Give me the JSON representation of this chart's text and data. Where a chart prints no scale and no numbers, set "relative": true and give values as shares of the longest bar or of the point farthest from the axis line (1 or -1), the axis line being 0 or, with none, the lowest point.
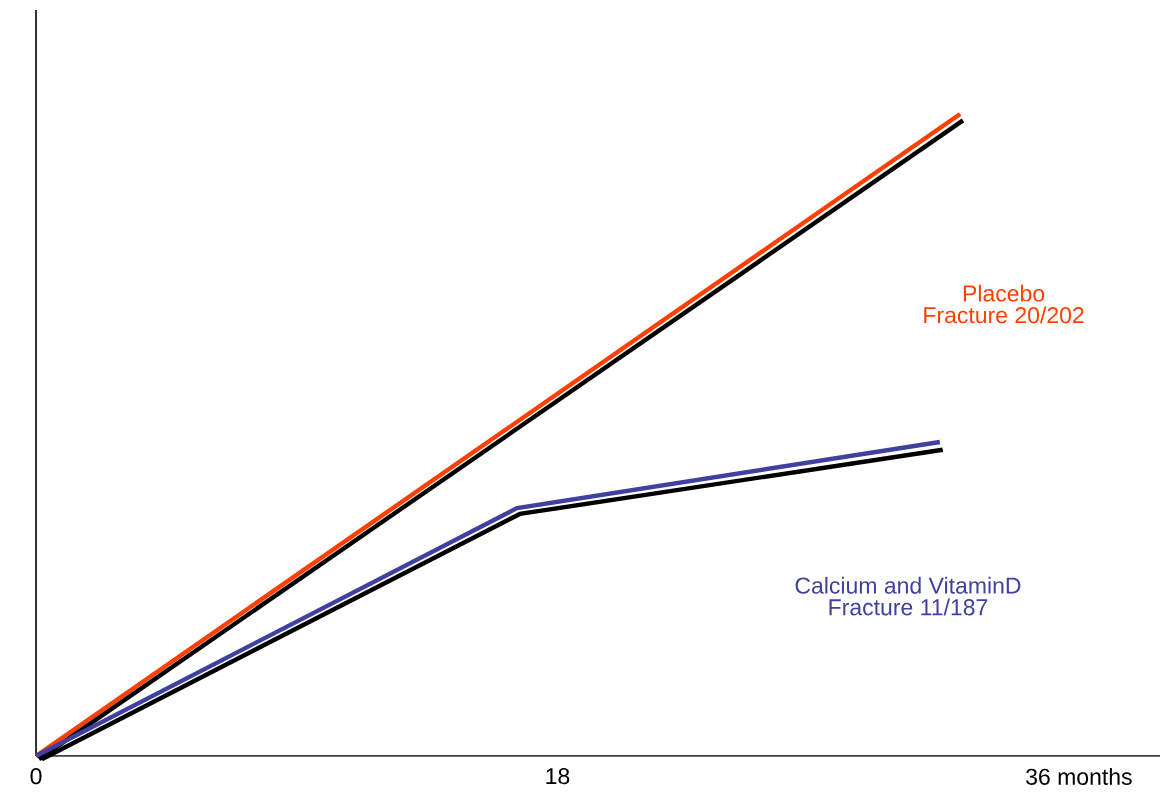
{
  "chart_data": {
    "type": "line",
    "relative": true,
    "xlim": [
      0,
      38.8
    ],
    "xticks": [
      0,
      18,
      {
        "value": 36,
        "label": "36 months"
      }
    ],
    "series": [
      {
        "name": "Placebo",
        "color": "#ff4000",
        "x": [
          0,
          31.9
        ],
        "values": [
          0,
          1.0
        ]
      },
      {
        "color": "#000000",
        "x": [
          0.1,
          32.0
        ],
        "values": [
          -0.005,
          0.99
        ]
      },
      {
        "name": "Calcium and VitaminD",
        "color": "#4040a0",
        "x": [
          0,
          16.6,
          31.2
        ],
        "values": [
          0,
          0.386,
          0.489
        ]
      },
      {
        "color": "#000000",
        "x": [
          0.2,
          16.7,
          31.3
        ],
        "values": [
          -0.005,
          0.377,
          0.477
        ]
      }
    ],
    "annotations": [
      "Fracture 20/202",
      "Fracture 11/187"
    ],
    "marker": "none",
    "line_style": "solid",
    "grid": false
  }
}
